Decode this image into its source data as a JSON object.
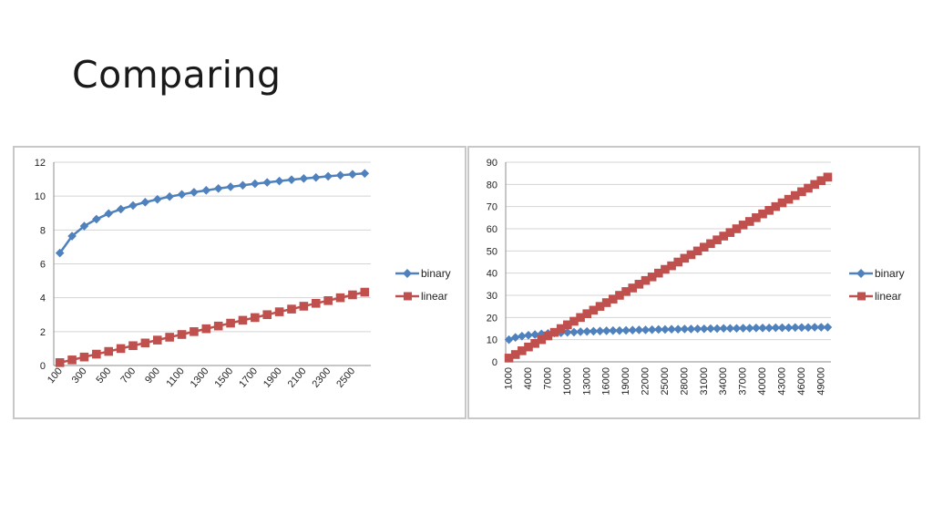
{
  "slide": {
    "title": "Comparing"
  },
  "colors": {
    "binary": "#4f81bd",
    "linear": "#c0504d",
    "grid": "#d4d4d4",
    "axis": "#8c8c8c"
  },
  "chart_data": [
    {
      "type": "line",
      "title": "",
      "xlabel": "",
      "ylabel": "",
      "x": [
        100,
        200,
        300,
        400,
        500,
        600,
        700,
        800,
        900,
        1000,
        1100,
        1200,
        1300,
        1400,
        1500,
        1600,
        1700,
        1800,
        1900,
        2000,
        2100,
        2200,
        2300,
        2400,
        2500,
        2600
      ],
      "x_tick_labels": [
        "100",
        "300",
        "500",
        "700",
        "900",
        "1100",
        "1300",
        "1500",
        "1700",
        "1900",
        "2100",
        "2300",
        "2500"
      ],
      "ylim": [
        0,
        12
      ],
      "y_ticks": [
        0,
        2,
        4,
        6,
        8,
        10,
        12
      ],
      "grid": true,
      "legend": "right",
      "series": [
        {
          "name": "binary",
          "marker": "diamond",
          "values": [
            6.64,
            7.64,
            8.23,
            8.64,
            8.97,
            9.23,
            9.45,
            9.64,
            9.81,
            9.97,
            10.1,
            10.23,
            10.34,
            10.45,
            10.55,
            10.64,
            10.73,
            10.81,
            10.89,
            10.97,
            11.04,
            11.1,
            11.17,
            11.23,
            11.29,
            11.34
          ]
        },
        {
          "name": "linear",
          "marker": "square",
          "values": [
            0.17,
            0.33,
            0.5,
            0.67,
            0.83,
            1.0,
            1.17,
            1.33,
            1.5,
            1.67,
            1.83,
            2.0,
            2.17,
            2.33,
            2.5,
            2.67,
            2.83,
            3.0,
            3.17,
            3.33,
            3.5,
            3.67,
            3.83,
            4.0,
            4.17,
            4.33
          ]
        }
      ]
    },
    {
      "type": "line",
      "title": "",
      "xlabel": "",
      "ylabel": "",
      "x": [
        1000,
        2000,
        3000,
        4000,
        5000,
        6000,
        7000,
        8000,
        9000,
        10000,
        11000,
        12000,
        13000,
        14000,
        15000,
        16000,
        17000,
        18000,
        19000,
        20000,
        21000,
        22000,
        23000,
        24000,
        25000,
        26000,
        27000,
        28000,
        29000,
        30000,
        31000,
        32000,
        33000,
        34000,
        35000,
        36000,
        37000,
        38000,
        39000,
        40000,
        41000,
        42000,
        43000,
        44000,
        45000,
        46000,
        47000,
        48000,
        49000,
        50000
      ],
      "x_tick_labels": [
        "1000",
        "4000",
        "7000",
        "10000",
        "13000",
        "16000",
        "19000",
        "22000",
        "25000",
        "28000",
        "31000",
        "34000",
        "37000",
        "40000",
        "43000",
        "46000",
        "49000"
      ],
      "ylim": [
        0,
        90
      ],
      "y_ticks": [
        0,
        10,
        20,
        30,
        40,
        50,
        60,
        70,
        80,
        90
      ],
      "grid": true,
      "legend": "right",
      "series": [
        {
          "name": "binary",
          "marker": "diamond",
          "values": [
            10.0,
            11.0,
            11.6,
            12.0,
            12.3,
            12.6,
            12.8,
            13.0,
            13.1,
            13.3,
            13.4,
            13.6,
            13.7,
            13.8,
            13.9,
            14.0,
            14.1,
            14.1,
            14.2,
            14.3,
            14.4,
            14.4,
            14.5,
            14.6,
            14.6,
            14.7,
            14.7,
            14.8,
            14.8,
            14.9,
            14.9,
            15.0,
            15.0,
            15.1,
            15.1,
            15.1,
            15.2,
            15.2,
            15.3,
            15.3,
            15.3,
            15.4,
            15.4,
            15.4,
            15.5,
            15.5,
            15.5,
            15.6,
            15.6,
            15.6
          ]
        },
        {
          "name": "linear",
          "marker": "square",
          "values": [
            1.7,
            3.3,
            5.0,
            6.7,
            8.3,
            10.0,
            11.7,
            13.3,
            15.0,
            16.7,
            18.3,
            20.0,
            21.7,
            23.3,
            25.0,
            26.7,
            28.3,
            30.0,
            31.7,
            33.3,
            35.0,
            36.7,
            38.3,
            40.0,
            41.7,
            43.3,
            45.0,
            46.7,
            48.3,
            50.0,
            51.7,
            53.3,
            55.0,
            56.7,
            58.3,
            60.0,
            61.7,
            63.3,
            65.0,
            66.7,
            68.3,
            70.0,
            71.7,
            73.3,
            75.0,
            76.7,
            78.3,
            80.0,
            81.7,
            83.3
          ]
        }
      ]
    }
  ]
}
